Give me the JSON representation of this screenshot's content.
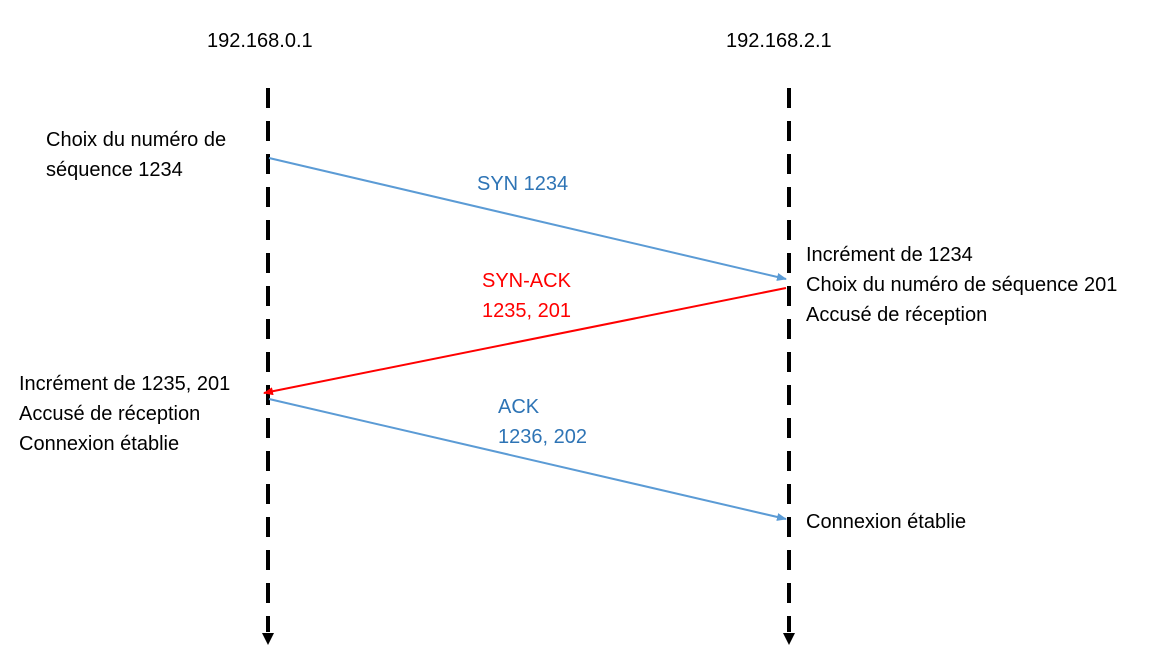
{
  "hosts": {
    "left": "192.168.0.1",
    "right": "192.168.2.1"
  },
  "notes": {
    "left_start": [
      "Choix du numéro de",
      "séquence 1234"
    ],
    "right_mid": [
      "Incrément de 1234",
      "Choix du numéro de séquence 201",
      "Accusé de réception"
    ],
    "left_mid": [
      "Incrément de 1235, 201",
      "Accusé de réception",
      "Connexion établie"
    ],
    "right_end": [
      "Connexion établie"
    ]
  },
  "messages": [
    {
      "label": [
        "SYN 1234"
      ],
      "direction": "left-to-right",
      "color": "#5b9bd5",
      "text_color": "#2e74b5"
    },
    {
      "label": [
        "SYN-ACK",
        "1235, 201"
      ],
      "direction": "right-to-left",
      "color": "#ff0000",
      "text_color": "#ff0000"
    },
    {
      "label": [
        "ACK",
        "1236, 202"
      ],
      "direction": "left-to-right",
      "color": "#5b9bd5",
      "text_color": "#2e74b5"
    }
  ]
}
